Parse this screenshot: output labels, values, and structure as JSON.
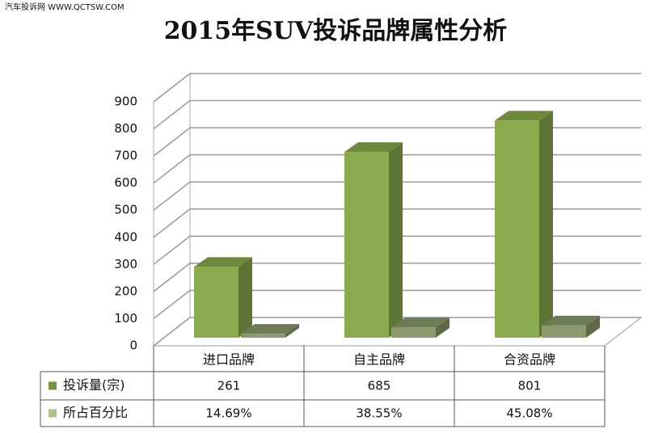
{
  "watermark": "汽车投诉网  WWW.QCTSW.COM",
  "chart_data": {
    "type": "bar",
    "title": "2015年SUV投诉品牌属性分析",
    "categories": [
      "进口品牌",
      "自主品牌",
      "合资品牌"
    ],
    "series": [
      {
        "name": "投诉量(宗)",
        "color": "#8aab4e",
        "values": [
          261,
          685,
          801
        ]
      },
      {
        "name": "所占百分比",
        "color": "#a9c48a",
        "values": [
          14.69,
          38.55,
          45.08
        ],
        "value_labels": [
          "14.69%",
          "38.55%",
          "45.08%"
        ]
      }
    ],
    "ylim": [
      0,
      900
    ],
    "yticks": [
      0,
      100,
      200,
      300,
      400,
      500,
      600,
      700,
      800,
      900
    ],
    "grid": true
  }
}
